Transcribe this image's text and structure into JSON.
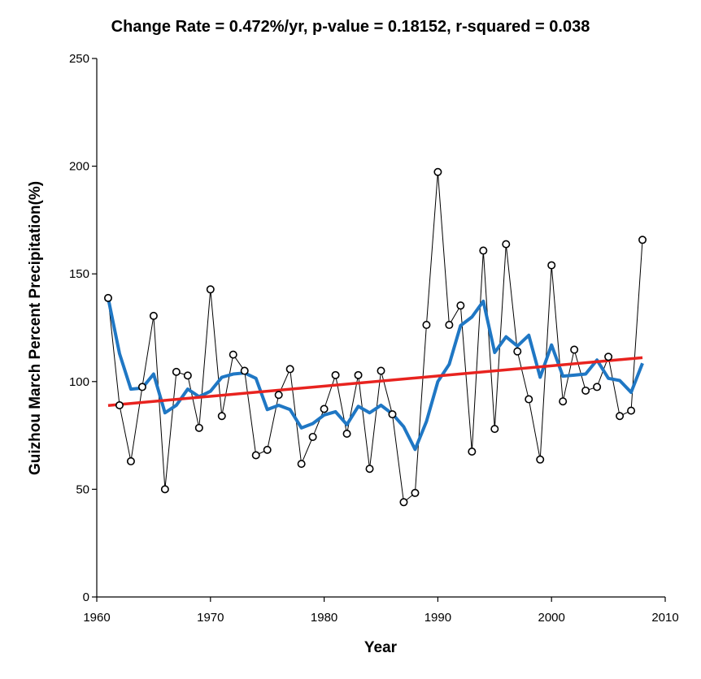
{
  "chart_data": {
    "type": "line",
    "title": "Change Rate =  0.472%/yr,  p-value =  0.18152,  r-squared =  0.038",
    "xlabel": "Year",
    "ylabel": "Guizhou March Percent Precipitation(%)",
    "xlim": [
      1960,
      2010
    ],
    "ylim": [
      0,
      250
    ],
    "xticks": [
      "1960",
      "1970",
      "1980",
      "1990",
      "2000",
      "2010"
    ],
    "yticks": [
      "0",
      "50",
      "100",
      "150",
      "200",
      "250"
    ],
    "grid": false,
    "x": [
      1961,
      1962,
      1963,
      1964,
      1965,
      1966,
      1967,
      1968,
      1969,
      1970,
      1971,
      1972,
      1973,
      1974,
      1975,
      1976,
      1977,
      1978,
      1979,
      1980,
      1981,
      1982,
      1983,
      1984,
      1985,
      1986,
      1987,
      1988,
      1989,
      1990,
      1991,
      1992,
      1993,
      1994,
      1995,
      1996,
      1997,
      1998,
      1999,
      2000,
      2001,
      2002,
      2003,
      2004,
      2005,
      2006,
      2007,
      2008
    ],
    "series": [
      {
        "role": "observed",
        "color": "#000000",
        "marker": "circle-open",
        "values": [
          138.8,
          89,
          63,
          97.5,
          130.5,
          50,
          104.5,
          102.8,
          78.5,
          142.8,
          84,
          112.5,
          105,
          65.8,
          68.3,
          93.8,
          105.8,
          61.8,
          74.3,
          87.3,
          103,
          75.8,
          103,
          59.5,
          105,
          84.8,
          44,
          48.3,
          126.3,
          197.3,
          126.3,
          135.3,
          67.5,
          160.8,
          78,
          163.8,
          114,
          91.8,
          63.8,
          154,
          90.8,
          114.8,
          95.8,
          97.5,
          111.5,
          84,
          86.5,
          165.8
        ]
      },
      {
        "role": "smoothed",
        "color": "#1f77c4",
        "values": [
          138.8,
          113,
          96.5,
          97,
          103.5,
          85.5,
          89,
          96.5,
          93,
          95.5,
          102,
          103.5,
          104,
          101.5,
          87,
          89,
          87,
          78.5,
          80.5,
          84.5,
          86,
          80,
          88.5,
          85.5,
          89,
          85,
          79,
          68.5,
          81.5,
          100,
          108,
          126,
          130,
          137.3,
          113.5,
          120.8,
          116.5,
          121.5,
          102,
          117,
          102.5,
          103,
          103.5,
          110,
          101.5,
          100.5,
          95,
          108.5
        ]
      },
      {
        "role": "trend",
        "color": "#e8231f",
        "values_at_ends": [
          88.9,
          111.1
        ]
      }
    ]
  }
}
